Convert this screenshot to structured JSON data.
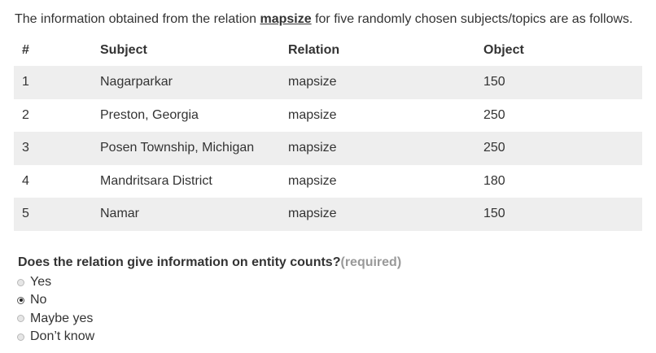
{
  "intro": {
    "before": "The information obtained from the relation ",
    "relation": "mapsize",
    "after": " for five randomly chosen subjects/topics are as follows."
  },
  "table": {
    "headers": [
      "#",
      "Subject",
      "Relation",
      "Object"
    ],
    "rows": [
      [
        "1",
        "Nagarparkar",
        "mapsize",
        "150"
      ],
      [
        "2",
        "Preston, Georgia",
        "mapsize",
        "250"
      ],
      [
        "3",
        "Posen Township, Michigan",
        "mapsize",
        "250"
      ],
      [
        "4",
        "Mandritsara District",
        "mapsize",
        "180"
      ],
      [
        "5",
        "Namar",
        "mapsize",
        "150"
      ]
    ]
  },
  "question": {
    "text": "Does the relation give information on entity counts?",
    "required": "(required)",
    "options": [
      "Yes",
      "No",
      "Maybe yes",
      "Don’t know"
    ],
    "selected": "No"
  }
}
